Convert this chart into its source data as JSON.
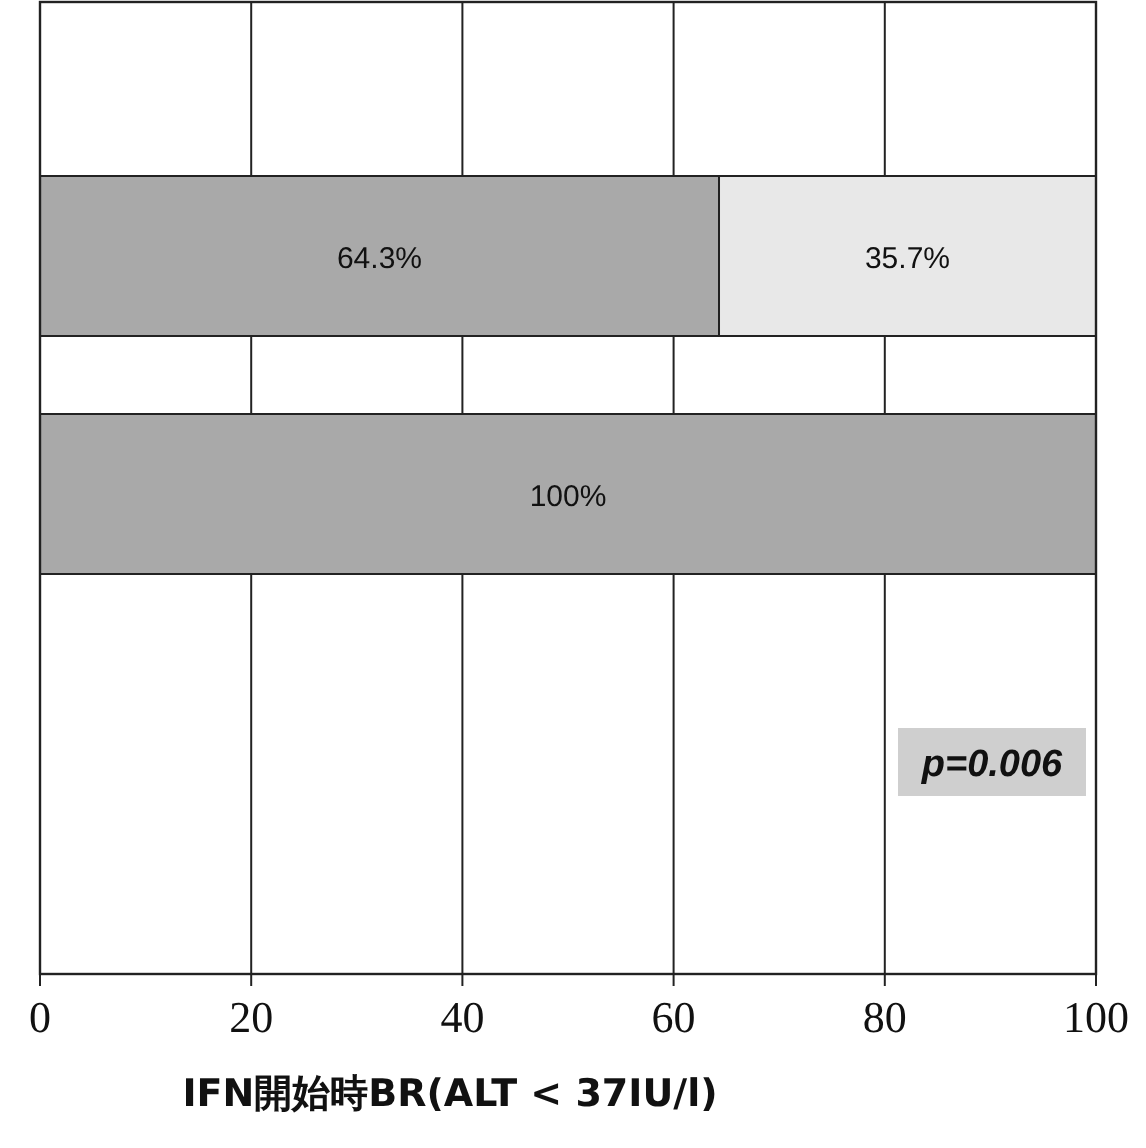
{
  "chart_data": {
    "type": "bar",
    "orientation": "horizontal",
    "stacked": true,
    "categories": [
      null,
      null
    ],
    "series": [
      {
        "color": "#a9a9a9",
        "values": [
          64.3,
          100
        ],
        "value_labels": [
          "64.3%",
          "100%"
        ]
      },
      {
        "color": "#e8e8e8",
        "values": [
          35.7,
          null
        ],
        "value_labels": [
          "35.7%",
          null
        ]
      }
    ],
    "xlim": [
      0,
      100
    ],
    "xticks": [
      0,
      20,
      40,
      60,
      80,
      100
    ],
    "grid": "x",
    "xlabel": "IFN開始時BR(ALT  <  37IU/l)",
    "annotations": [
      "p=0.006"
    ]
  }
}
